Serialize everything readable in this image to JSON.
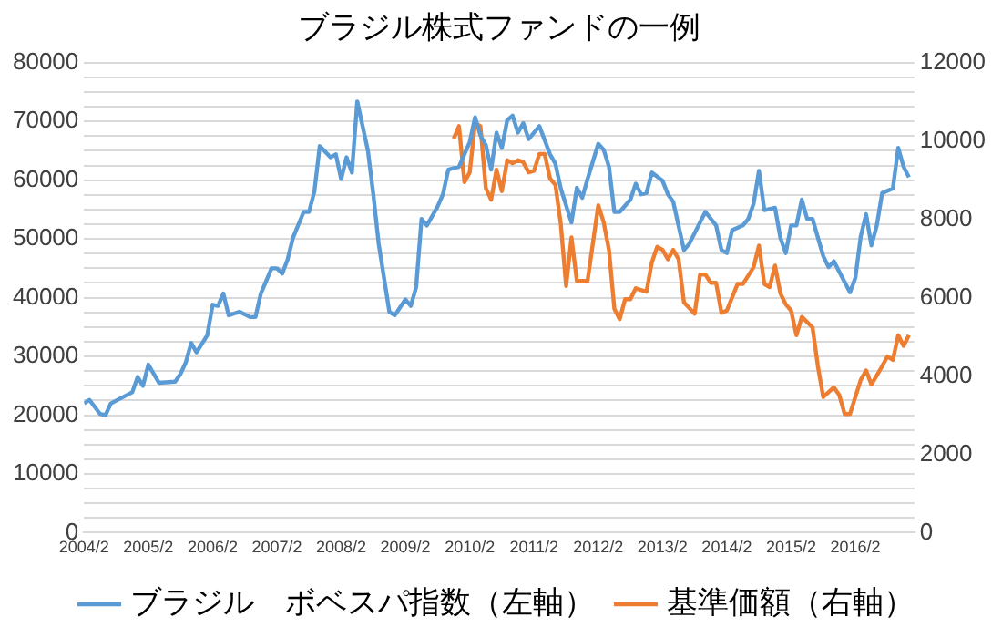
{
  "chart_data": {
    "type": "line",
    "title": "ブラジル株式ファンドの一例",
    "xlim": [
      "2004-02",
      "2017-01"
    ],
    "xticks": [
      {
        "value": "2004-02",
        "label": "2004/2"
      },
      {
        "value": "2005-02",
        "label": "2005/2"
      },
      {
        "value": "2006-02",
        "label": "2006/2"
      },
      {
        "value": "2007-02",
        "label": "2007/2"
      },
      {
        "value": "2008-02",
        "label": "2008/2"
      },
      {
        "value": "2009-02",
        "label": "2009/2"
      },
      {
        "value": "2010-02",
        "label": "2010/2"
      },
      {
        "value": "2011-02",
        "label": "2011/2"
      },
      {
        "value": "2012-02",
        "label": "2012/2"
      },
      {
        "value": "2013-02",
        "label": "2013/2"
      },
      {
        "value": "2014-02",
        "label": "2014/2"
      },
      {
        "value": "2015-02",
        "label": "2015/2"
      },
      {
        "value": "2016-02",
        "label": "2016/2"
      }
    ],
    "ylim": [
      0,
      80000
    ],
    "yticks": [
      0,
      {
        "value": 2500,
        "label": null
      },
      {
        "value": 5000,
        "label": null
      },
      {
        "value": 7500,
        "label": null
      },
      10000,
      {
        "value": 12500,
        "label": null
      },
      {
        "value": 15000,
        "label": null
      },
      {
        "value": 17500,
        "label": null
      },
      20000,
      {
        "value": 22500,
        "label": null
      },
      {
        "value": 25000,
        "label": null
      },
      {
        "value": 27500,
        "label": null
      },
      30000,
      {
        "value": 32500,
        "label": null
      },
      {
        "value": 35000,
        "label": null
      },
      {
        "value": 37500,
        "label": null
      },
      40000,
      {
        "value": 42500,
        "label": null
      },
      {
        "value": 45000,
        "label": null
      },
      {
        "value": 47500,
        "label": null
      },
      50000,
      {
        "value": 52500,
        "label": null
      },
      {
        "value": 55000,
        "label": null
      },
      {
        "value": 57500,
        "label": null
      },
      60000,
      {
        "value": 62500,
        "label": null
      },
      {
        "value": 65000,
        "label": null
      },
      {
        "value": 67500,
        "label": null
      },
      70000,
      {
        "value": 72500,
        "label": null
      },
      {
        "value": 75000,
        "label": null
      },
      {
        "value": 77500,
        "label": null
      },
      80000
    ],
    "y2lim": [
      0,
      12000
    ],
    "y2ticks": [
      0,
      2000,
      4000,
      6000,
      8000,
      10000,
      12000
    ],
    "grid": "y",
    "legend": "bottom",
    "marker": "none",
    "line_style": "solid",
    "series": [
      {
        "name": "ブラジル　ボベスパ指数（左軸）",
        "color": "#5b9bd5",
        "x": [
          "2004-02",
          "2004-03",
          "2004-05",
          "2004-06",
          "2004-07",
          "2004-11",
          "2004-12",
          "2005-01",
          "2005-02",
          "2005-04",
          "2005-07",
          "2005-08",
          "2005-09",
          "2005-10",
          "2005-11",
          "2006-01",
          "2006-02",
          "2006-03",
          "2006-04",
          "2006-05",
          "2006-07",
          "2006-09",
          "2006-10",
          "2006-11",
          "2007-01",
          "2007-02",
          "2007-03",
          "2007-04",
          "2007-05",
          "2007-07",
          "2007-08",
          "2007-09",
          "2007-10",
          "2007-12",
          "2008-01",
          "2008-02",
          "2008-03",
          "2008-04",
          "2008-05",
          "2008-07",
          "2008-08",
          "2008-09",
          "2008-11",
          "2008-12",
          "2009-02",
          "2009-03",
          "2009-04",
          "2009-05",
          "2009-06",
          "2009-08",
          "2009-09",
          "2009-10",
          "2009-12",
          "2010-02",
          "2010-03",
          "2010-04",
          "2010-05",
          "2010-06",
          "2010-07",
          "2010-08",
          "2010-09",
          "2010-10",
          "2010-11",
          "2010-12",
          "2011-01",
          "2011-03",
          "2011-05",
          "2011-06",
          "2011-07",
          "2011-09",
          "2011-10",
          "2011-11",
          "2011-12",
          "2012-02",
          "2012-03",
          "2012-04",
          "2012-05",
          "2012-06",
          "2012-08",
          "2012-09",
          "2012-10",
          "2012-11",
          "2012-12",
          "2013-02",
          "2013-03",
          "2013-04",
          "2013-06",
          "2013-07",
          "2013-09",
          "2013-10",
          "2013-12",
          "2014-01",
          "2014-02",
          "2014-03",
          "2014-05",
          "2014-06",
          "2014-07",
          "2014-08",
          "2014-09",
          "2014-11",
          "2014-12",
          "2015-01",
          "2015-02",
          "2015-03",
          "2015-04",
          "2015-05",
          "2015-06",
          "2015-08",
          "2015-09",
          "2015-10",
          "2015-11",
          "2016-01",
          "2016-02",
          "2016-03",
          "2016-04",
          "2016-05",
          "2016-06",
          "2016-07",
          "2016-09",
          "2016-10",
          "2016-11",
          "2016-12"
        ],
        "values": [
          22000,
          22600,
          20200,
          20000,
          22000,
          23900,
          26500,
          25000,
          28600,
          25500,
          25700,
          27000,
          29000,
          32300,
          30700,
          33600,
          38800,
          38600,
          40700,
          37000,
          37600,
          36700,
          36700,
          40700,
          45000,
          45000,
          44100,
          46500,
          50200,
          54600,
          54600,
          58100,
          65800,
          63900,
          64400,
          60200,
          63900,
          61300,
          73400,
          65000,
          57600,
          49200,
          37600,
          37000,
          39700,
          38600,
          41800,
          53400,
          52300,
          55500,
          57600,
          61800,
          62300,
          66500,
          70700,
          67600,
          66000,
          61800,
          68100,
          65500,
          70200,
          71000,
          68100,
          69700,
          67000,
          69200,
          64400,
          62800,
          58600,
          52800,
          58700,
          57000,
          60200,
          66200,
          65200,
          62300,
          54600,
          54600,
          56700,
          59400,
          57600,
          57800,
          61300,
          59900,
          57600,
          56300,
          48100,
          49200,
          52800,
          54600,
          52300,
          48100,
          47600,
          51500,
          52300,
          53400,
          56000,
          61600,
          54900,
          55300,
          50200,
          47600,
          52300,
          52300,
          56700,
          53400,
          53400,
          47100,
          45200,
          46200,
          44400,
          40900,
          43400,
          50400,
          54200,
          48900,
          52300,
          57800,
          58600,
          65500,
          62300,
          60500
        ]
      },
      {
        "name": "基準価額（右軸）",
        "color": "#ed7d31",
        "axis": "y2",
        "x": [
          "2009-11",
          "2009-12",
          "2010-01",
          "2010-02",
          "2010-03",
          "2010-04",
          "2010-05",
          "2010-06",
          "2010-07",
          "2010-08",
          "2010-09",
          "2010-10",
          "2010-11",
          "2010-12",
          "2011-01",
          "2011-02",
          "2011-03",
          "2011-04",
          "2011-05",
          "2011-06",
          "2011-07",
          "2011-08",
          "2011-09",
          "2011-10",
          "2011-12",
          "2012-02",
          "2012-03",
          "2012-04",
          "2012-05",
          "2012-06",
          "2012-07",
          "2012-08",
          "2012-09",
          "2012-11",
          "2012-12",
          "2013-01",
          "2013-02",
          "2013-03",
          "2013-04",
          "2013-05",
          "2013-06",
          "2013-08",
          "2013-09",
          "2013-10",
          "2013-11",
          "2013-12",
          "2014-01",
          "2014-02",
          "2014-04",
          "2014-05",
          "2014-07",
          "2014-08",
          "2014-09",
          "2014-10",
          "2014-11",
          "2014-12",
          "2015-01",
          "2015-02",
          "2015-03",
          "2015-04",
          "2015-06",
          "2015-07",
          "2015-08",
          "2015-10",
          "2015-11",
          "2015-12",
          "2016-01",
          "2016-03",
          "2016-04",
          "2016-05",
          "2016-07",
          "2016-08",
          "2016-09",
          "2016-10",
          "2016-11",
          "2016-12"
        ],
        "values": [
          10060,
          10380,
          8950,
          9200,
          10460,
          10380,
          8800,
          8500,
          9270,
          8720,
          9510,
          9430,
          9510,
          9460,
          9200,
          9240,
          9670,
          9670,
          9040,
          8880,
          7880,
          6300,
          7540,
          6430,
          6430,
          8360,
          7930,
          7220,
          5720,
          5450,
          5960,
          5960,
          6240,
          6150,
          6900,
          7300,
          7220,
          6980,
          7220,
          6980,
          5880,
          5590,
          6590,
          6590,
          6380,
          6380,
          5610,
          5670,
          6350,
          6350,
          6780,
          7330,
          6350,
          6270,
          6820,
          6110,
          5830,
          5670,
          5040,
          5510,
          5240,
          4250,
          3460,
          3710,
          3510,
          3030,
          3030,
          3900,
          4140,
          3780,
          4250,
          4500,
          4410,
          5040,
          4770,
          5040
        ]
      }
    ]
  }
}
